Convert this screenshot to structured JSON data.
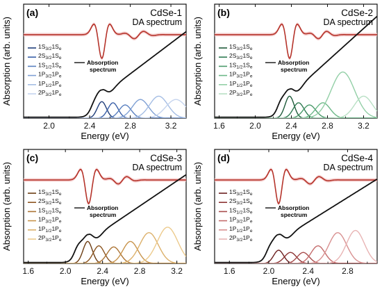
{
  "figure": {
    "ylabel": "Absorption (arb. units)",
    "xlabel": "Energy (eV)",
    "da_label": "DA spectrum",
    "absorption_label_line1": "Absorption",
    "absorption_label_line2": "spectrum"
  },
  "chart_data": [
    {
      "type": "line",
      "panel_label": "(a)",
      "title": "CdSe-1",
      "xlabel": "Energy (eV)",
      "ylabel": "Absorption (arb. units)",
      "xlim": [
        1.75,
        3.35
      ],
      "xticks": [
        2.0,
        2.4,
        2.8,
        3.2
      ],
      "xtick_labels": [
        "2.0",
        "2.4",
        "2.8",
        "3.2"
      ],
      "peak_color": "#2a4f8c",
      "da_center": 2.52,
      "da_width": 0.045,
      "absorption": {
        "onset": 2.42,
        "first_peak": 2.52,
        "end_level": 0.78,
        "dip_after_peak": 2.6
      },
      "transitions": [
        {
          "label_main": "1S",
          "label_sub": "3/2",
          "label_main2": "1S",
          "label_sub2": "e",
          "center": 2.52,
          "width": 0.045,
          "height": 0.15,
          "color": "#1f3d7a"
        },
        {
          "label_main": "2S",
          "label_sub": "3/2",
          "label_main2": "1S",
          "label_sub2": "e",
          "center": 2.63,
          "width": 0.05,
          "height": 0.14,
          "color": "#3a60a8"
        },
        {
          "label_main": "1S",
          "label_sub": "1/2",
          "label_main2": "1S",
          "label_sub2": "e",
          "center": 2.75,
          "width": 0.06,
          "height": 0.12,
          "color": "#5a80c0"
        },
        {
          "label_main": "1P",
          "label_sub": "3/2",
          "label_main2": "1P",
          "label_sub2": "e",
          "center": 2.9,
          "width": 0.08,
          "height": 0.17,
          "color": "#7fa0d4"
        },
        {
          "label_main": "1P",
          "label_sub": "1/2",
          "label_main2": "1P",
          "label_sub2": "e",
          "center": 3.08,
          "width": 0.09,
          "height": 0.2,
          "color": "#a4bde4"
        },
        {
          "label_main": "2P",
          "label_sub": "3/2",
          "label_main2": "1P",
          "label_sub2": "e",
          "center": 3.25,
          "width": 0.1,
          "height": 0.17,
          "color": "#c5d4ee"
        }
      ]
    },
    {
      "type": "line",
      "panel_label": "(b)",
      "title": "CdSe-2",
      "xlabel": "Energy (eV)",
      "ylabel": "Absorption (arb. units)",
      "xlim": [
        1.55,
        3.35
      ],
      "xticks": [
        1.6,
        2.0,
        2.4,
        2.8,
        3.2
      ],
      "xtick_labels": [
        "1.6",
        "2.0",
        "2.4",
        "2.8",
        "3.2"
      ],
      "peak_color": "#2a6b48",
      "da_center": 2.38,
      "da_width": 0.05,
      "absorption": {
        "onset": 2.25,
        "first_peak": 2.38,
        "end_level": 0.92,
        "dip_after_peak": 2.48
      },
      "transitions": [
        {
          "label_main": "1S",
          "label_sub": "3/2",
          "label_main2": "1S",
          "label_sub2": "e",
          "center": 2.38,
          "width": 0.05,
          "height": 0.2,
          "color": "#1e5a3a"
        },
        {
          "label_main": "2S",
          "label_sub": "3/2",
          "label_main2": "1S",
          "label_sub2": "e",
          "center": 2.48,
          "width": 0.06,
          "height": 0.14,
          "color": "#2f7a52"
        },
        {
          "label_main": "1S",
          "label_sub": "1/2",
          "label_main2": "1S",
          "label_sub2": "e",
          "center": 2.6,
          "width": 0.07,
          "height": 0.12,
          "color": "#4a9a6a"
        },
        {
          "label_main": "1P",
          "label_sub": "3/2",
          "label_main2": "1P",
          "label_sub2": "e",
          "center": 2.75,
          "width": 0.08,
          "height": 0.14,
          "color": "#6cb888"
        },
        {
          "label_main": "1P",
          "label_sub": "1/2",
          "label_main2": "1P",
          "label_sub2": "e",
          "center": 2.97,
          "width": 0.13,
          "height": 0.42,
          "color": "#92cfa6"
        },
        {
          "label_main": "2P",
          "label_sub": "3/2",
          "label_main2": "1P",
          "label_sub2": "e",
          "center": 3.2,
          "width": 0.1,
          "height": 0.2,
          "color": "#b8e0c4"
        }
      ]
    },
    {
      "type": "line",
      "panel_label": "(c)",
      "title": "CdSe-3",
      "xlabel": "Energy (eV)",
      "ylabel": "Absorption (arb. units)",
      "xlim": [
        1.55,
        3.3
      ],
      "xticks": [
        1.6,
        2.0,
        2.4,
        2.8,
        3.2
      ],
      "xtick_labels": [
        "1.6",
        "2.0",
        "2.4",
        "2.8",
        "3.2"
      ],
      "peak_color": "#7a4a14",
      "da_center": 2.25,
      "da_width": 0.05,
      "absorption": {
        "onset": 2.1,
        "first_peak": 2.25,
        "end_level": 0.8,
        "dip_after_peak": 2.35
      },
      "transitions": [
        {
          "label_main": "1S",
          "label_sub": "3/2",
          "label_main2": "1S",
          "label_sub2": "e",
          "center": 2.24,
          "width": 0.05,
          "height": 0.2,
          "color": "#6b3c12"
        },
        {
          "label_main": "2S",
          "label_sub": "3/2",
          "label_main2": "1S",
          "label_sub2": "e",
          "center": 2.36,
          "width": 0.06,
          "height": 0.16,
          "color": "#8c5520"
        },
        {
          "label_main": "1S",
          "label_sub": "1/2",
          "label_main2": "1S",
          "label_sub2": "e",
          "center": 2.52,
          "width": 0.07,
          "height": 0.15,
          "color": "#ac7434"
        },
        {
          "label_main": "1P",
          "label_sub": "3/2",
          "label_main2": "1P",
          "label_sub2": "e",
          "center": 2.7,
          "width": 0.08,
          "height": 0.2,
          "color": "#c8944c"
        },
        {
          "label_main": "1P",
          "label_sub": "1/2",
          "label_main2": "1P",
          "label_sub2": "e",
          "center": 2.9,
          "width": 0.1,
          "height": 0.28,
          "color": "#dcb06a"
        },
        {
          "label_main": "2P",
          "label_sub": "3/2",
          "label_main2": "1P",
          "label_sub2": "e",
          "center": 3.1,
          "width": 0.11,
          "height": 0.33,
          "color": "#ecca8c"
        }
      ]
    },
    {
      "type": "line",
      "panel_label": "(d)",
      "title": "CdSe-4",
      "xlabel": "Energy (eV)",
      "ylabel": "Absorption (arb. units)",
      "xlim": [
        1.45,
        3.1
      ],
      "xticks": [
        1.6,
        2.0,
        2.4,
        2.8
      ],
      "xtick_labels": [
        "1.6",
        "2.0",
        "2.4",
        "2.8"
      ],
      "peak_color": "#7a2a2a",
      "da_center": 2.1,
      "da_width": 0.045,
      "absorption": {
        "onset": 1.98,
        "first_peak": 2.1,
        "end_level": 0.76,
        "dip_after_peak": 2.2
      },
      "transitions": [
        {
          "label_main": "1S",
          "label_sub": "3/2",
          "label_main2": "1S",
          "label_sub2": "e",
          "center": 2.1,
          "width": 0.05,
          "height": 0.12,
          "color": "#6b1e1e"
        },
        {
          "label_main": "2S",
          "label_sub": "3/2",
          "label_main2": "1S",
          "label_sub2": "e",
          "center": 2.22,
          "width": 0.06,
          "height": 0.1,
          "color": "#8c3434"
        },
        {
          "label_main": "1S",
          "label_sub": "1/2",
          "label_main2": "1S",
          "label_sub2": "e",
          "center": 2.35,
          "width": 0.06,
          "height": 0.1,
          "color": "#a84c4c"
        },
        {
          "label_main": "1P",
          "label_sub": "3/2",
          "label_main2": "1P",
          "label_sub2": "e",
          "center": 2.5,
          "width": 0.07,
          "height": 0.16,
          "color": "#c46c6c"
        },
        {
          "label_main": "1P",
          "label_sub": "1/2",
          "label_main2": "1P",
          "label_sub2": "e",
          "center": 2.7,
          "width": 0.09,
          "height": 0.28,
          "color": "#d89090"
        },
        {
          "label_main": "2P",
          "label_sub": "3/2",
          "label_main2": "1P",
          "label_sub2": "e",
          "center": 2.88,
          "width": 0.09,
          "height": 0.3,
          "color": "#e8b4b4"
        }
      ]
    }
  ],
  "colors": {
    "da_line": "#b5332a",
    "da_band": "#f2c4c4",
    "absorption_line": "#111111",
    "axis": "#111111"
  }
}
